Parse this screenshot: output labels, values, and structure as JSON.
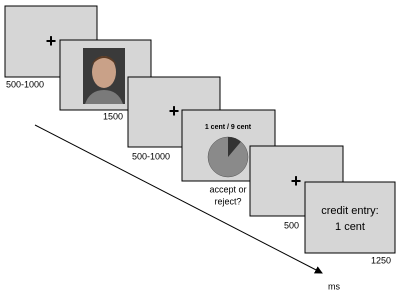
{
  "screens": [
    {
      "content": "+",
      "duration": "500-1000"
    },
    {
      "duration": "1500"
    },
    {
      "content": "+",
      "duration": "500-1000"
    },
    {
      "content": "1 cent / 9 cent",
      "caption": [
        "accept or",
        "reject?"
      ]
    },
    {
      "content": "+",
      "duration": "500"
    },
    {
      "content": [
        "credit entry:",
        "1 cent"
      ],
      "duration": "1250"
    }
  ],
  "time_axis": {
    "label": "ms"
  }
}
